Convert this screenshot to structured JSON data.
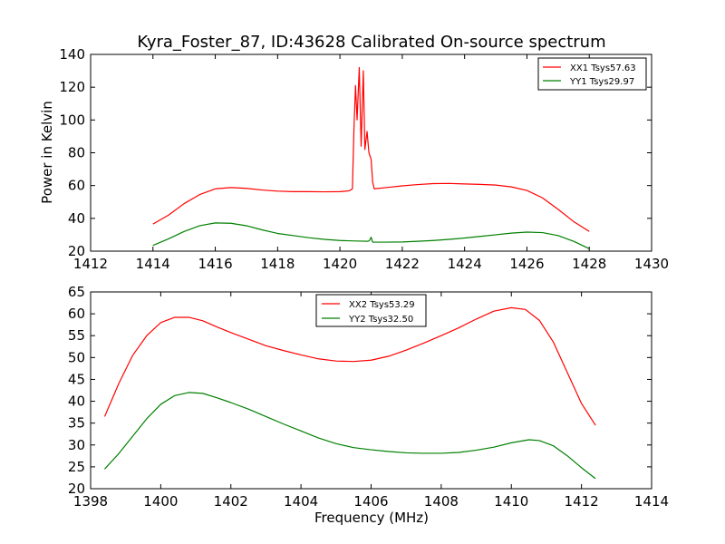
{
  "chart_data": [
    {
      "type": "line",
      "title": "Kyra_Foster_87, ID:43628 Calibrated On-source spectrum",
      "ylabel": "Power in Kelvin",
      "xlabel": "",
      "xlim": [
        1412,
        1430
      ],
      "ylim": [
        20,
        140
      ],
      "xticks": [
        1412,
        1414,
        1416,
        1418,
        1420,
        1422,
        1424,
        1426,
        1428,
        1430
      ],
      "yticks": [
        20,
        40,
        60,
        80,
        100,
        120,
        140
      ],
      "grid": false,
      "legend_position": "top-right",
      "series": [
        {
          "name": "XX1 Tsys57.63",
          "color": "#ff0000",
          "points": [
            [
              1414.0,
              36.5
            ],
            [
              1414.5,
              42
            ],
            [
              1415.0,
              49
            ],
            [
              1415.5,
              54.5
            ],
            [
              1416.0,
              58
            ],
            [
              1416.5,
              58.8
            ],
            [
              1417.0,
              58.3
            ],
            [
              1417.5,
              57.3
            ],
            [
              1418.0,
              56.6
            ],
            [
              1418.5,
              56.3
            ],
            [
              1419.0,
              56.3
            ],
            [
              1419.5,
              56.2
            ],
            [
              1420.0,
              56.3
            ],
            [
              1420.3,
              56.8
            ],
            [
              1420.4,
              58
            ],
            [
              1420.45,
              95
            ],
            [
              1420.5,
              121
            ],
            [
              1420.55,
              100
            ],
            [
              1420.62,
              132
            ],
            [
              1420.68,
              84
            ],
            [
              1420.75,
              130
            ],
            [
              1420.8,
              82
            ],
            [
              1420.87,
              93
            ],
            [
              1420.93,
              80
            ],
            [
              1421.0,
              76
            ],
            [
              1421.05,
              62
            ],
            [
              1421.1,
              58
            ],
            [
              1421.5,
              58.8
            ],
            [
              1422.0,
              59.8
            ],
            [
              1422.5,
              60.6
            ],
            [
              1423.0,
              61.2
            ],
            [
              1423.5,
              61.3
            ],
            [
              1424.0,
              61.0
            ],
            [
              1424.5,
              60.7
            ],
            [
              1425.0,
              60.3
            ],
            [
              1425.5,
              59.2
            ],
            [
              1426.0,
              57
            ],
            [
              1426.5,
              52.5
            ],
            [
              1427.0,
              45.5
            ],
            [
              1427.5,
              38
            ],
            [
              1428.0,
              32
            ]
          ]
        },
        {
          "name": "YY1 Tsys29.97",
          "color": "#008000",
          "points": [
            [
              1414.0,
              23.5
            ],
            [
              1414.5,
              27.5
            ],
            [
              1415.0,
              32
            ],
            [
              1415.5,
              35.5
            ],
            [
              1416.0,
              37.2
            ],
            [
              1416.5,
              37
            ],
            [
              1417.0,
              35.5
            ],
            [
              1417.5,
              33
            ],
            [
              1418.0,
              30.8
            ],
            [
              1418.5,
              29.5
            ],
            [
              1419.0,
              28.2
            ],
            [
              1419.5,
              27.2
            ],
            [
              1420.0,
              26.5
            ],
            [
              1420.5,
              26.2
            ],
            [
              1420.9,
              26.0
            ],
            [
              1420.95,
              26.5
            ],
            [
              1421.0,
              28.5
            ],
            [
              1421.05,
              25.5
            ],
            [
              1421.5,
              25.5
            ],
            [
              1422.0,
              25.6
            ],
            [
              1422.5,
              26
            ],
            [
              1423.0,
              26.5
            ],
            [
              1423.5,
              27.2
            ],
            [
              1424.0,
              28
            ],
            [
              1424.5,
              29
            ],
            [
              1425.0,
              30
            ],
            [
              1425.5,
              31
            ],
            [
              1426.0,
              31.6
            ],
            [
              1426.5,
              31.3
            ],
            [
              1427.0,
              29.5
            ],
            [
              1427.5,
              26
            ],
            [
              1428.0,
              21.5
            ]
          ]
        }
      ]
    },
    {
      "type": "line",
      "title": "",
      "ylabel": "",
      "xlabel": "Frequency (MHz)",
      "xlim": [
        1398,
        1414
      ],
      "ylim": [
        20,
        65
      ],
      "xticks": [
        1398,
        1400,
        1402,
        1404,
        1406,
        1408,
        1410,
        1412,
        1414
      ],
      "yticks": [
        20,
        25,
        30,
        35,
        40,
        45,
        50,
        55,
        60,
        65
      ],
      "grid": false,
      "legend_position": "top-center",
      "series": [
        {
          "name": "XX2 Tsys53.29",
          "color": "#ff0000",
          "points": [
            [
              1398.4,
              36.5
            ],
            [
              1398.8,
              44
            ],
            [
              1399.2,
              50.5
            ],
            [
              1399.6,
              55
            ],
            [
              1400.0,
              58
            ],
            [
              1400.4,
              59.2
            ],
            [
              1400.8,
              59.2
            ],
            [
              1401.2,
              58.4
            ],
            [
              1401.6,
              57
            ],
            [
              1402.0,
              55.7
            ],
            [
              1402.5,
              54.2
            ],
            [
              1403.0,
              52.7
            ],
            [
              1403.5,
              51.6
            ],
            [
              1404.0,
              50.6
            ],
            [
              1404.5,
              49.7
            ],
            [
              1405.0,
              49.2
            ],
            [
              1405.5,
              49.1
            ],
            [
              1406.0,
              49.4
            ],
            [
              1406.5,
              50.3
            ],
            [
              1407.0,
              51.7
            ],
            [
              1407.5,
              53.3
            ],
            [
              1408.0,
              55
            ],
            [
              1408.5,
              56.8
            ],
            [
              1409.0,
              58.8
            ],
            [
              1409.5,
              60.6
            ],
            [
              1410.0,
              61.4
            ],
            [
              1410.4,
              61
            ],
            [
              1410.8,
              58.5
            ],
            [
              1411.2,
              53.5
            ],
            [
              1411.6,
              46.5
            ],
            [
              1412.0,
              39.5
            ],
            [
              1412.4,
              34.5
            ]
          ]
        },
        {
          "name": "YY2 Tsys32.50",
          "color": "#008000",
          "points": [
            [
              1398.4,
              24.5
            ],
            [
              1398.8,
              28
            ],
            [
              1399.2,
              32
            ],
            [
              1399.6,
              36
            ],
            [
              1400.0,
              39.3
            ],
            [
              1400.4,
              41.3
            ],
            [
              1400.8,
              42
            ],
            [
              1401.2,
              41.8
            ],
            [
              1401.6,
              40.8
            ],
            [
              1402.0,
              39.7
            ],
            [
              1402.5,
              38.2
            ],
            [
              1403.0,
              36.5
            ],
            [
              1403.5,
              34.8
            ],
            [
              1404.0,
              33.2
            ],
            [
              1404.5,
              31.6
            ],
            [
              1405.0,
              30.3
            ],
            [
              1405.5,
              29.4
            ],
            [
              1406.0,
              28.9
            ],
            [
              1406.5,
              28.5
            ],
            [
              1407.0,
              28.2
            ],
            [
              1407.5,
              28.1
            ],
            [
              1408.0,
              28.1
            ],
            [
              1408.5,
              28.3
            ],
            [
              1409.0,
              28.8
            ],
            [
              1409.5,
              29.5
            ],
            [
              1410.0,
              30.5
            ],
            [
              1410.5,
              31.2
            ],
            [
              1410.8,
              31
            ],
            [
              1411.2,
              29.8
            ],
            [
              1411.6,
              27.5
            ],
            [
              1412.0,
              24.8
            ],
            [
              1412.4,
              22.3
            ]
          ]
        }
      ]
    }
  ]
}
